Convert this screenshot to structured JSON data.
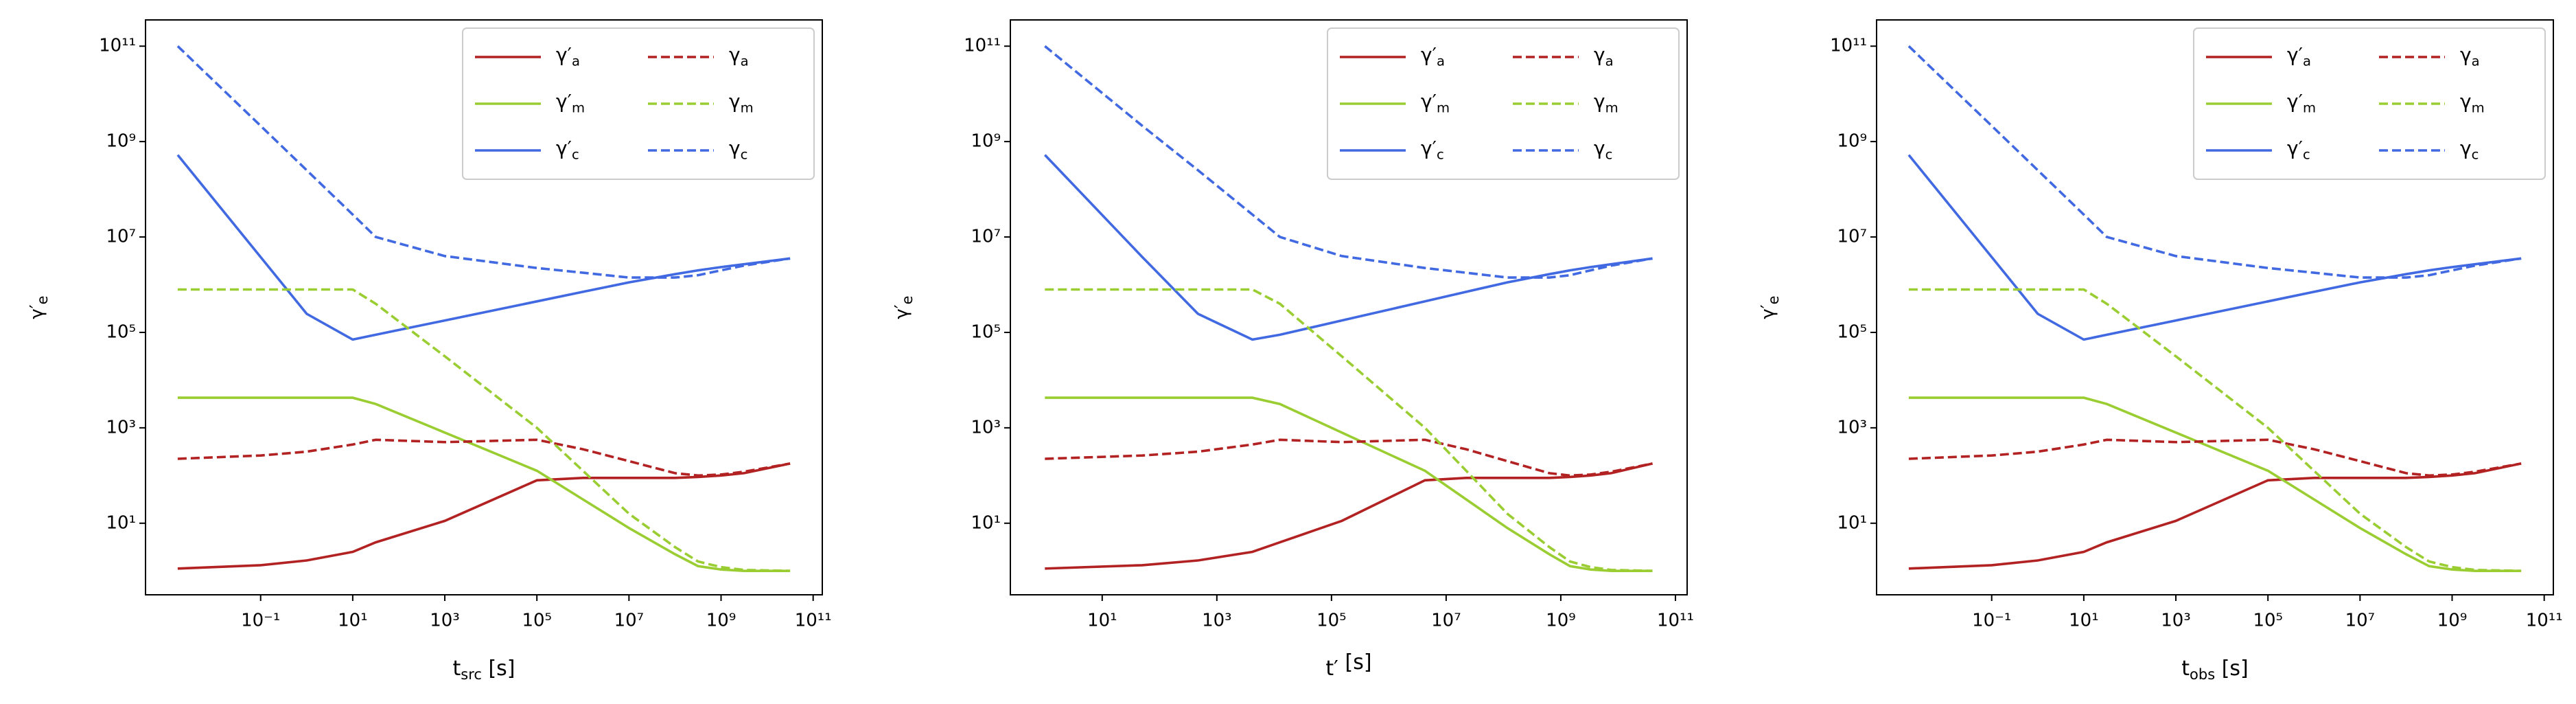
{
  "chart_data": [
    {
      "type": "line",
      "xlabel": "tsrc [s]",
      "ylabel": "γ′e",
      "xscale": "log",
      "yscale": "log",
      "legend": "upper right",
      "legend_ncol": 2,
      "xlim": [
        0.000316,
        158000000000.0
      ],
      "ylim": [
        0.316,
        355000000000.0
      ],
      "xticks": [
        {
          "value": 0.1,
          "label": "10⁻¹"
        },
        {
          "value": 10,
          "label": "10¹"
        },
        {
          "value": 1000,
          "label": "10³"
        },
        {
          "value": 100000.0,
          "label": "10⁵"
        },
        {
          "value": 10000000.0,
          "label": "10⁷"
        },
        {
          "value": 1000000000.0,
          "label": "10⁹"
        },
        {
          "value": 100000000000.0,
          "label": "10¹¹"
        }
      ],
      "yticks": [
        {
          "value": 10,
          "label": "10¹"
        },
        {
          "value": 1000,
          "label": "10³"
        },
        {
          "value": 100000.0,
          "label": "10⁵"
        },
        {
          "value": 10000000.0,
          "label": "10⁷"
        },
        {
          "value": 1000000000.0,
          "label": "10⁹"
        },
        {
          "value": 100000000000.0,
          "label": "10¹¹"
        }
      ],
      "x": [
        0.00158,
        0.1,
        1,
        10,
        31.6,
        1000,
        100000.0,
        1000000.0,
        10000000.0,
        100000000.0,
        316000000.0,
        1000000000.0,
        3160000000.0,
        31600000000.0
      ],
      "series": [
        {
          "name": "γ′a",
          "color": "#b22222",
          "linestyle": "solid",
          "values": [
            1.12,
            1.32,
            1.66,
            2.51,
            3.98,
            11.2,
            79.4,
            89.1,
            89.1,
            89.1,
            93.3,
            100,
            112,
            178
          ]
        },
        {
          "name": "γ′m",
          "color": "#9acd32",
          "linestyle": "solid",
          "values": [
            4270,
            4270,
            4270,
            4270,
            3160,
            794,
            126,
            31.6,
            7.94,
            2.24,
            1.26,
            1.07,
            1,
            1
          ]
        },
        {
          "name": "γ′c",
          "color": "#4169e1",
          "linestyle": "solid",
          "values": [
            525000000.0,
            3800000.0,
            245000.0,
            70800.0,
            89100.0,
            178000.0,
            447000.0,
            708000.0,
            1120000.0,
            1660000.0,
            2000000.0,
            2340000.0,
            2690000.0,
            3550000.0
          ]
        },
        {
          "name": "γa",
          "color": "#b22222",
          "linestyle": "dashed",
          "values": [
            224,
            263,
            316,
            447,
            562,
            501,
            562,
            355,
            200,
            112,
            100,
            105,
            120,
            178
          ]
        },
        {
          "name": "γm",
          "color": "#9acd32",
          "linestyle": "dashed",
          "values": [
            794000.0,
            794000.0,
            794000.0,
            794000.0,
            398000.0,
            31600.0,
            1000,
            126,
            15.8,
            3.16,
            1.58,
            1.2,
            1.05,
            1
          ]
        },
        {
          "name": "γc",
          "color": "#4169e1",
          "linestyle": "dashed",
          "values": [
            100000000000.0,
            2140000000.0,
            251000000.0,
            29500000.0,
            10000000.0,
            3980000.0,
            2240000.0,
            1780000.0,
            1410000.0,
            1410000.0,
            1580000.0,
            2000000.0,
            2510000.0,
            3550000.0
          ]
        }
      ]
    },
    {
      "type": "line",
      "xlabel": "t′ [s]",
      "ylabel": "γ′e",
      "xscale": "log",
      "yscale": "log",
      "legend": "upper right",
      "legend_ncol": 2,
      "xlim": [
        0.25,
        160000000000.0
      ],
      "ylim": [
        0.316,
        355000000000.0
      ],
      "xticks": [
        {
          "value": 10,
          "label": "10¹"
        },
        {
          "value": 1000,
          "label": "10³"
        },
        {
          "value": 100000.0,
          "label": "10⁵"
        },
        {
          "value": 10000000.0,
          "label": "10⁷"
        },
        {
          "value": 1000000000.0,
          "label": "10⁹"
        },
        {
          "value": 100000000000.0,
          "label": "10¹¹"
        }
      ],
      "yticks": [
        {
          "value": 10,
          "label": "10¹"
        },
        {
          "value": 1000,
          "label": "10³"
        },
        {
          "value": 100000.0,
          "label": "10⁵"
        },
        {
          "value": 10000000.0,
          "label": "10⁷"
        },
        {
          "value": 1000000000.0,
          "label": "10⁹"
        },
        {
          "value": 100000000000.0,
          "label": "10¹¹"
        }
      ],
      "x": [
        1,
        50,
        468,
        4170,
        12600.0,
        151000.0,
        4270000.0,
        22400000.0,
        117000000.0,
        631000000.0,
        1450000000.0,
        3310000000.0,
        7590000000.0,
        39800000000.0
      ],
      "series": [
        {
          "name": "γ′a",
          "color": "#b22222",
          "linestyle": "solid",
          "values": [
            1.12,
            1.32,
            1.66,
            2.51,
            3.98,
            11.2,
            79.4,
            89.1,
            89.1,
            89.1,
            93.3,
            100,
            112,
            178
          ]
        },
        {
          "name": "γ′m",
          "color": "#9acd32",
          "linestyle": "solid",
          "values": [
            4270,
            4270,
            4270,
            4270,
            3160,
            794,
            126,
            31.6,
            7.94,
            2.24,
            1.26,
            1.07,
            1,
            1
          ]
        },
        {
          "name": "γ′c",
          "color": "#4169e1",
          "linestyle": "solid",
          "values": [
            525000000.0,
            3800000.0,
            245000.0,
            70800.0,
            89100.0,
            178000.0,
            447000.0,
            708000.0,
            1120000.0,
            1660000.0,
            2000000.0,
            2340000.0,
            2690000.0,
            3550000.0
          ]
        },
        {
          "name": "γa",
          "color": "#b22222",
          "linestyle": "dashed",
          "values": [
            224,
            263,
            316,
            447,
            562,
            501,
            562,
            355,
            200,
            112,
            100,
            105,
            120,
            178
          ]
        },
        {
          "name": "γm",
          "color": "#9acd32",
          "linestyle": "dashed",
          "values": [
            794000.0,
            794000.0,
            794000.0,
            794000.0,
            398000.0,
            31600.0,
            1000,
            126,
            15.8,
            3.16,
            1.58,
            1.2,
            1.05,
            1
          ]
        },
        {
          "name": "γc",
          "color": "#4169e1",
          "linestyle": "dashed",
          "values": [
            100000000000.0,
            2140000000.0,
            251000000.0,
            29500000.0,
            10000000.0,
            3980000.0,
            2240000.0,
            1780000.0,
            1410000.0,
            1410000.0,
            1580000.0,
            2000000.0,
            2510000.0,
            3550000.0
          ]
        }
      ]
    },
    {
      "type": "line",
      "xlabel": "tobs [s]",
      "ylabel": "γ′e",
      "xscale": "log",
      "yscale": "log",
      "legend": "upper right",
      "legend_ncol": 2,
      "xlim": [
        0.000316,
        158000000000.0
      ],
      "ylim": [
        0.316,
        355000000000.0
      ],
      "xticks": [
        {
          "value": 0.1,
          "label": "10⁻¹"
        },
        {
          "value": 10,
          "label": "10¹"
        },
        {
          "value": 1000,
          "label": "10³"
        },
        {
          "value": 100000.0,
          "label": "10⁵"
        },
        {
          "value": 10000000.0,
          "label": "10⁷"
        },
        {
          "value": 1000000000.0,
          "label": "10⁹"
        },
        {
          "value": 100000000000.0,
          "label": "10¹¹"
        }
      ],
      "yticks": [
        {
          "value": 10,
          "label": "10¹"
        },
        {
          "value": 1000,
          "label": "10³"
        },
        {
          "value": 100000.0,
          "label": "10⁵"
        },
        {
          "value": 10000000.0,
          "label": "10⁷"
        },
        {
          "value": 1000000000.0,
          "label": "10⁹"
        },
        {
          "value": 100000000000.0,
          "label": "10¹¹"
        }
      ],
      "x": [
        0.00158,
        0.1,
        1,
        10,
        31.6,
        1000,
        100000.0,
        1000000.0,
        10000000.0,
        100000000.0,
        316000000.0,
        1000000000.0,
        3160000000.0,
        31600000000.0
      ],
      "series": [
        {
          "name": "γ′a",
          "color": "#b22222",
          "linestyle": "solid",
          "values": [
            1.12,
            1.32,
            1.66,
            2.51,
            3.98,
            11.2,
            79.4,
            89.1,
            89.1,
            89.1,
            93.3,
            100,
            112,
            178
          ]
        },
        {
          "name": "γ′m",
          "color": "#9acd32",
          "linestyle": "solid",
          "values": [
            4270,
            4270,
            4270,
            4270,
            3160,
            794,
            126,
            31.6,
            7.94,
            2.24,
            1.26,
            1.07,
            1,
            1
          ]
        },
        {
          "name": "γ′c",
          "color": "#4169e1",
          "linestyle": "solid",
          "values": [
            525000000.0,
            3800000.0,
            245000.0,
            70800.0,
            89100.0,
            178000.0,
            447000.0,
            708000.0,
            1120000.0,
            1660000.0,
            2000000.0,
            2340000.0,
            2690000.0,
            3550000.0
          ]
        },
        {
          "name": "γa",
          "color": "#b22222",
          "linestyle": "dashed",
          "values": [
            224,
            263,
            316,
            447,
            562,
            501,
            562,
            355,
            200,
            112,
            100,
            105,
            120,
            178
          ]
        },
        {
          "name": "γm",
          "color": "#9acd32",
          "linestyle": "dashed",
          "values": [
            794000.0,
            794000.0,
            794000.0,
            794000.0,
            398000.0,
            31600.0,
            1000,
            126,
            15.8,
            3.16,
            1.58,
            1.2,
            1.05,
            1
          ]
        },
        {
          "name": "γc",
          "color": "#4169e1",
          "linestyle": "dashed",
          "values": [
            100000000000.0,
            2140000000.0,
            251000000.0,
            29500000.0,
            10000000.0,
            3980000.0,
            2240000.0,
            1780000.0,
            1410000.0,
            1410000.0,
            1580000.0,
            2000000.0,
            2510000.0,
            3550000.0
          ]
        }
      ]
    }
  ]
}
